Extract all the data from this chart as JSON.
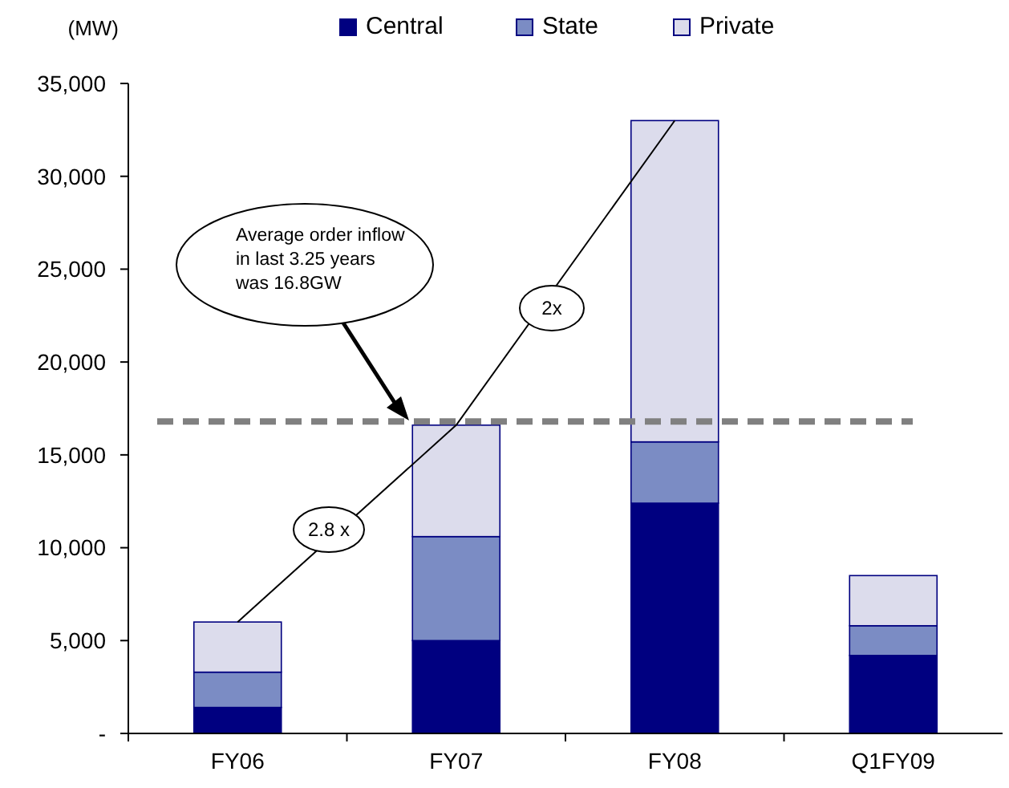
{
  "chart_data": {
    "type": "bar",
    "stacked": true,
    "ylabel": "(MW)",
    "categories": [
      "FY06",
      "FY07",
      "FY08",
      "Q1FY09"
    ],
    "series": [
      {
        "name": "Central",
        "color": "#000080",
        "values": [
          1400,
          5000,
          12400,
          4200
        ]
      },
      {
        "name": "State",
        "color": "#7b8cc4",
        "values": [
          1900,
          5600,
          3300,
          1600
        ]
      },
      {
        "name": "Private",
        "color": "#dcdcec",
        "values": [
          2700,
          6000,
          17300,
          2700
        ]
      }
    ],
    "ylim": [
      0,
      35000
    ],
    "yticks": [
      {
        "value": 0,
        "label": "-"
      },
      {
        "value": 5000,
        "label": "5,000"
      },
      {
        "value": 10000,
        "label": "10,000"
      },
      {
        "value": 15000,
        "label": "15,000"
      },
      {
        "value": 20000,
        "label": "20,000"
      },
      {
        "value": 25000,
        "label": "25,000"
      },
      {
        "value": 30000,
        "label": "30,000"
      },
      {
        "value": 35000,
        "label": "35,000"
      }
    ],
    "ref_lines": [
      {
        "axis": "y",
        "value": 16800,
        "color": "#808080",
        "line_style": "dashed"
      }
    ],
    "annotations": [
      "Average order inflow in last 3.25 years was 16.8GW",
      "2.8 x",
      "2x"
    ],
    "legend": "top",
    "grid": false
  }
}
